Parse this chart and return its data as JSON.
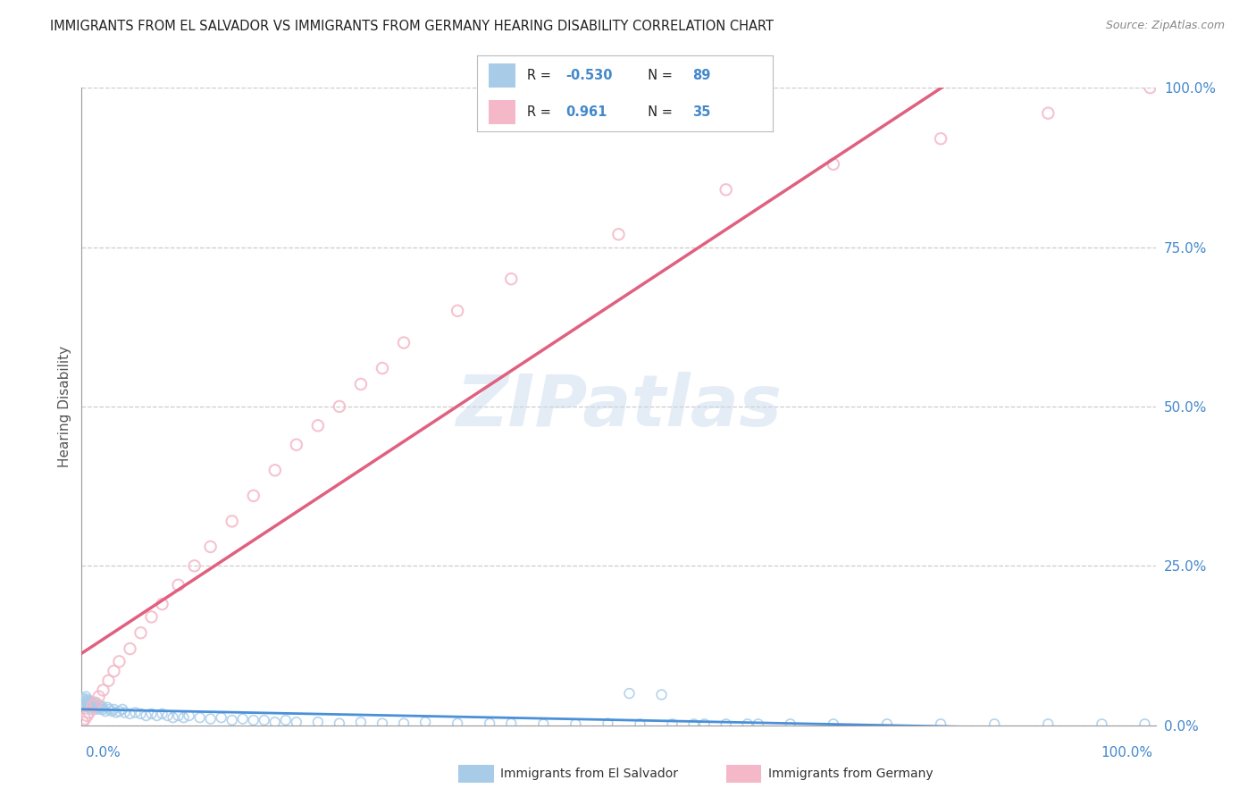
{
  "title": "IMMIGRANTS FROM EL SALVADOR VS IMMIGRANTS FROM GERMANY HEARING DISABILITY CORRELATION CHART",
  "source": "Source: ZipAtlas.com",
  "ylabel": "Hearing Disability",
  "ytick_labels": [
    "0.0%",
    "25.0%",
    "50.0%",
    "75.0%",
    "100.0%"
  ],
  "ytick_values": [
    0,
    25,
    50,
    75,
    100
  ],
  "el_salvador": {
    "R": -0.53,
    "N": 89,
    "color": "#a8cce8",
    "line_color": "#4a90d9",
    "x": [
      0.1,
      0.15,
      0.2,
      0.25,
      0.3,
      0.35,
      0.4,
      0.45,
      0.5,
      0.55,
      0.6,
      0.65,
      0.7,
      0.75,
      0.8,
      0.85,
      0.9,
      0.95,
      1.0,
      1.1,
      1.2,
      1.3,
      1.4,
      1.5,
      1.6,
      1.7,
      1.8,
      1.9,
      2.0,
      2.2,
      2.4,
      2.6,
      2.8,
      3.0,
      3.2,
      3.5,
      3.8,
      4.0,
      4.5,
      5.0,
      5.5,
      6.0,
      6.5,
      7.0,
      7.5,
      8.0,
      8.5,
      9.0,
      9.5,
      10.0,
      11.0,
      12.0,
      13.0,
      14.0,
      15.0,
      16.0,
      17.0,
      18.0,
      19.0,
      20.0,
      22.0,
      24.0,
      26.0,
      28.0,
      30.0,
      32.0,
      35.0,
      38.0,
      40.0,
      43.0,
      46.0,
      49.0,
      52.0,
      55.0,
      58.0,
      62.0,
      66.0,
      70.0,
      75.0,
      80.0,
      85.0,
      90.0,
      95.0,
      99.0,
      51.0,
      54.0,
      57.0,
      60.0,
      63.0
    ],
    "y": [
      3.5,
      4.0,
      3.8,
      4.2,
      3.5,
      3.0,
      4.5,
      3.2,
      3.8,
      3.5,
      4.0,
      2.8,
      3.5,
      3.0,
      3.2,
      3.8,
      2.5,
      3.5,
      2.8,
      3.0,
      3.5,
      2.5,
      3.0,
      2.8,
      3.2,
      2.5,
      2.8,
      3.0,
      2.5,
      2.2,
      2.8,
      2.5,
      2.2,
      2.5,
      2.0,
      2.2,
      2.5,
      2.0,
      1.8,
      2.0,
      1.8,
      1.5,
      1.8,
      1.5,
      1.8,
      1.5,
      1.2,
      1.5,
      1.2,
      1.5,
      1.2,
      1.0,
      1.2,
      0.8,
      1.0,
      0.8,
      0.8,
      0.5,
      0.8,
      0.5,
      0.5,
      0.3,
      0.5,
      0.3,
      0.3,
      0.5,
      0.3,
      0.3,
      0.3,
      0.2,
      0.2,
      0.3,
      0.2,
      0.2,
      0.2,
      0.2,
      0.2,
      0.2,
      0.2,
      0.2,
      0.2,
      0.2,
      0.2,
      0.2,
      5.0,
      4.8,
      0.2,
      0.2,
      0.2
    ]
  },
  "germany": {
    "R": 0.961,
    "N": 35,
    "color": "#f4b8c8",
    "line_color": "#e06080",
    "x": [
      0.1,
      0.3,
      0.5,
      0.7,
      1.0,
      1.3,
      1.6,
      2.0,
      2.5,
      3.0,
      3.5,
      4.5,
      5.5,
      6.5,
      7.5,
      9.0,
      10.5,
      12.0,
      14.0,
      16.0,
      18.0,
      20.0,
      22.0,
      24.0,
      26.0,
      28.0,
      30.0,
      35.0,
      40.0,
      50.0,
      60.0,
      70.0,
      80.0,
      90.0,
      99.5
    ],
    "y": [
      0.5,
      1.0,
      1.5,
      2.0,
      3.0,
      3.5,
      4.5,
      5.5,
      7.0,
      8.5,
      10.0,
      12.0,
      14.5,
      17.0,
      19.0,
      22.0,
      25.0,
      28.0,
      32.0,
      36.0,
      40.0,
      44.0,
      47.0,
      50.0,
      53.5,
      56.0,
      60.0,
      65.0,
      70.0,
      77.0,
      84.0,
      88.0,
      92.0,
      96.0,
      100.0
    ]
  },
  "xmin": 0,
  "xmax": 100,
  "ymin": 0,
  "ymax": 100,
  "watermark": "ZIPatlas",
  "background_color": "#ffffff",
  "grid_color": "#cccccc"
}
